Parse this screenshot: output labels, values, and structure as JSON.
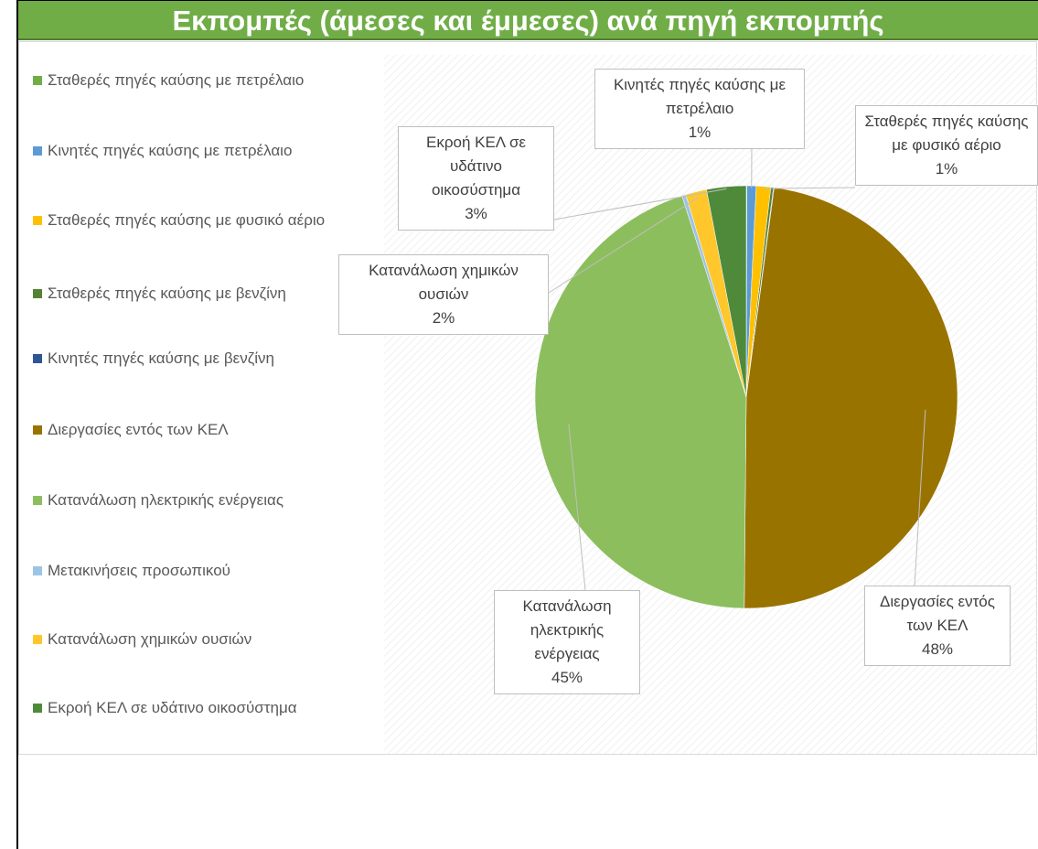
{
  "chart_data": {
    "type": "pie",
    "title": "Εκπομπές (άμεσες και έμμεσες) ανά πηγή εκπομπής",
    "categories": [
      "Σταθερές πηγές καύσης με πετρέλαιο",
      "Κινητές πηγές καύσης με πετρέλαιο",
      "Σταθερές πηγές καύσης με φυσικό αέριο",
      "Σταθερές πηγές καύσης με βενζίνη",
      "Κινητές πηγές καύσης με βενζίνη",
      "Διεργασίες εντός των ΚΕΛ",
      "Κατανάλωση ηλεκτρικής ενέργειας",
      "Μετακινήσεις προσωπικού",
      "Κατανάλωση χημικών ουσιών",
      "Εκροή ΚΕΛ σε υδάτινο οικοσύστημα"
    ],
    "values": [
      0.05,
      0.7,
      1.1,
      0.2,
      0.05,
      47.8,
      44.7,
      0.3,
      1.6,
      3.0
    ],
    "value_labels": [
      null,
      "1%",
      "1%",
      null,
      null,
      "48%",
      "45%",
      null,
      "2%",
      "3%"
    ],
    "colors": [
      "#70ad47",
      "#5b9bd5",
      "#ffc000",
      "#548235",
      "#2f5597",
      "#997300",
      "#8cbe5e",
      "#9dc3e6",
      "#ffc72c",
      "#4e8a3a"
    ],
    "legend": "left"
  }
}
